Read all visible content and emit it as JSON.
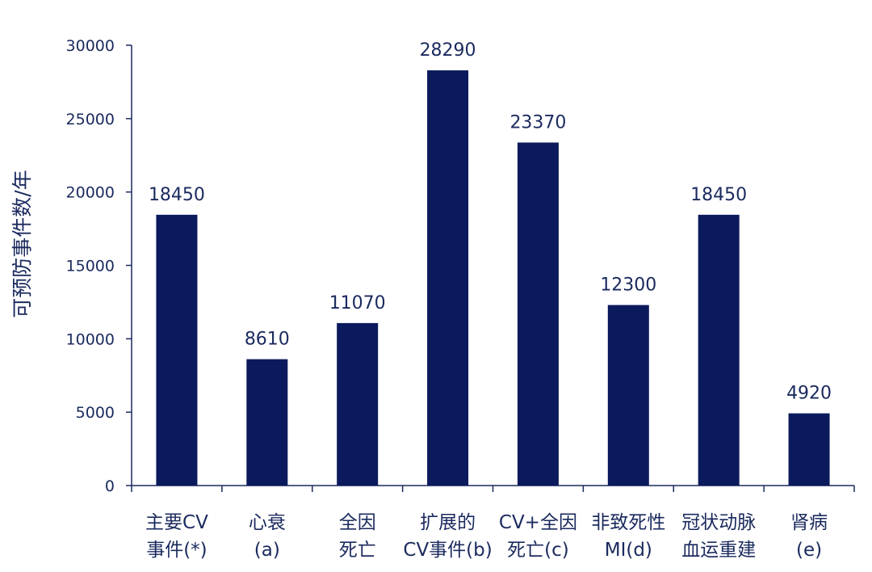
{
  "chart_data": {
    "type": "bar",
    "title": "",
    "xlabel": "",
    "ylabel": "可预防事件数/年",
    "ylim": [
      0,
      30000
    ],
    "yticks": [
      0,
      5000,
      10000,
      15000,
      20000,
      25000,
      30000
    ],
    "grid": false,
    "legend": "none",
    "categories": [
      [
        "主要CV",
        "事件(*)"
      ],
      [
        "心衰",
        "(a)"
      ],
      [
        "全因",
        "死亡"
      ],
      [
        "扩展的",
        "CV事件(b)"
      ],
      [
        "CV+全因",
        "死亡(c)"
      ],
      [
        "非致死性",
        "MI(d)"
      ],
      [
        "冠状动脉",
        "血运重建"
      ],
      [
        "肾病",
        "(e)"
      ]
    ],
    "values": [
      18450,
      8610,
      11070,
      28290,
      23370,
      12300,
      18450,
      4920
    ],
    "data_labels": [
      "18450",
      "8610",
      "11070",
      "28290",
      "23370",
      "12300",
      "18450",
      "4920"
    ],
    "colors": {
      "bar": "#0b1a5c",
      "axis": "#1b2a5e",
      "text": "#1b2a5e"
    }
  }
}
